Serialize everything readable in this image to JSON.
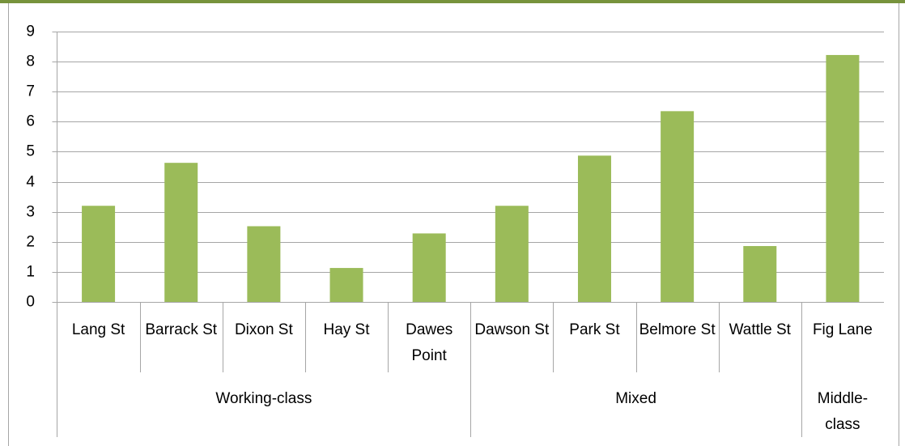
{
  "chart_data": {
    "type": "bar",
    "categories": [
      "Lang St",
      "Barrack St",
      "Dixon St",
      "Hay St",
      "Dawes Point",
      "Dawson St",
      "Park St",
      "Belmore St",
      "Wattle St",
      "Fig Lane"
    ],
    "groups": [
      "Working-class",
      null,
      null,
      null,
      null,
      "Mixed",
      null,
      null,
      null,
      "Middle-class"
    ],
    "values": [
      3.2,
      4.63,
      2.52,
      1.13,
      2.28,
      3.2,
      4.87,
      6.35,
      1.86,
      8.22
    ],
    "color": "#9bbb59",
    "ylim": [
      0,
      9
    ],
    "yticks": [
      0,
      1,
      2,
      3,
      4,
      5,
      6,
      7,
      8,
      9
    ],
    "grid": true
  }
}
